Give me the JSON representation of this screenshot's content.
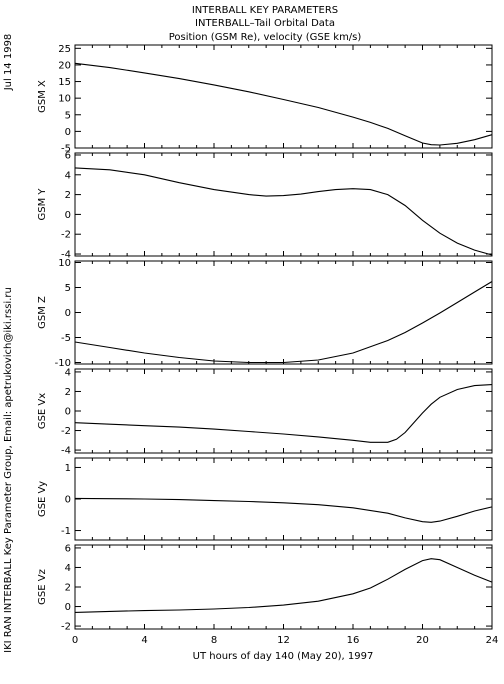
{
  "header": {
    "title_lines": [
      "INTERBALL KEY PARAMETERS",
      "INTERBALL–Tail Orbital Data",
      "Position (GSM Re), velocity (GSE km/s)"
    ]
  },
  "side_labels": {
    "date": "Jul 14 1998",
    "credit": "IKI RAN INTERBALL Key Parameter Group, Email: apetrukovich@iki.rssi.ru"
  },
  "chart_data": {
    "type": "line",
    "x_axis": {
      "label": "UT hours of day 140 (May 20), 1997",
      "range": [
        0,
        24
      ],
      "ticks": [
        0,
        4,
        8,
        12,
        16,
        20,
        24
      ]
    },
    "panels": [
      {
        "name": "GSM X",
        "ylim": [
          -5,
          26
        ],
        "yticks": [
          -5,
          0,
          5,
          10,
          15,
          20,
          25
        ],
        "x": [
          0,
          2,
          4,
          6,
          8,
          10,
          12,
          14,
          16,
          17,
          18,
          19,
          20,
          20.5,
          21,
          22,
          23,
          24
        ],
        "values": [
          20.5,
          19.2,
          17.6,
          15.9,
          14.0,
          11.9,
          9.6,
          7.2,
          4.3,
          2.7,
          0.9,
          -1.3,
          -3.5,
          -4.0,
          -4.1,
          -3.6,
          -2.5,
          -1.0
        ]
      },
      {
        "name": "GSM Y",
        "ylim": [
          -4.2,
          6.2
        ],
        "yticks": [
          -4,
          -2,
          0,
          2,
          4,
          6
        ],
        "x": [
          0,
          2,
          4,
          6,
          8,
          10,
          11,
          12,
          13,
          14,
          15,
          16,
          17,
          18,
          19,
          20,
          21,
          22,
          23,
          24
        ],
        "values": [
          4.7,
          4.5,
          4.0,
          3.2,
          2.5,
          2.0,
          1.85,
          1.9,
          2.05,
          2.3,
          2.5,
          2.6,
          2.5,
          2.0,
          0.9,
          -0.6,
          -1.9,
          -2.9,
          -3.6,
          -4.1
        ]
      },
      {
        "name": "GSM Z",
        "ylim": [
          -10.3,
          10.3
        ],
        "yticks": [
          -10,
          -5,
          0,
          5,
          10
        ],
        "x": [
          0,
          2,
          4,
          6,
          8,
          10,
          12,
          14,
          16,
          18,
          19,
          20,
          21,
          22,
          23,
          24
        ],
        "values": [
          -5.9,
          -7.0,
          -8.1,
          -9.0,
          -9.7,
          -10.0,
          -10.0,
          -9.5,
          -8.1,
          -5.6,
          -4.0,
          -2.1,
          -0.1,
          2.0,
          4.1,
          6.2
        ]
      },
      {
        "name": "GSE Vx",
        "ylim": [
          -4.3,
          4.3
        ],
        "yticks": [
          -4,
          -2,
          0,
          2,
          4
        ],
        "x": [
          0,
          2,
          4,
          6,
          8,
          10,
          12,
          14,
          16,
          17,
          18,
          18.5,
          19,
          19.5,
          20,
          20.5,
          21,
          22,
          23,
          24
        ],
        "values": [
          -1.2,
          -1.35,
          -1.5,
          -1.65,
          -1.85,
          -2.1,
          -2.35,
          -2.65,
          -3.0,
          -3.2,
          -3.2,
          -2.9,
          -2.2,
          -1.2,
          -0.2,
          0.7,
          1.4,
          2.2,
          2.6,
          2.7
        ]
      },
      {
        "name": "GSE Vy",
        "ylim": [
          -1.3,
          1.3
        ],
        "yticks": [
          -1,
          0,
          1
        ],
        "x": [
          0,
          2,
          4,
          6,
          8,
          10,
          12,
          14,
          16,
          18,
          19,
          20,
          20.5,
          21,
          22,
          23,
          24
        ],
        "values": [
          0.02,
          0.01,
          0.0,
          -0.02,
          -0.05,
          -0.08,
          -0.12,
          -0.18,
          -0.28,
          -0.45,
          -0.6,
          -0.72,
          -0.74,
          -0.7,
          -0.55,
          -0.38,
          -0.25
        ]
      },
      {
        "name": "GSE Vz",
        "ylim": [
          -2.3,
          6.3
        ],
        "yticks": [
          -2,
          0,
          2,
          4,
          6
        ],
        "x": [
          0,
          2,
          4,
          6,
          8,
          10,
          12,
          14,
          16,
          17,
          18,
          19,
          20,
          20.5,
          21,
          22,
          23,
          24
        ],
        "values": [
          -0.6,
          -0.5,
          -0.42,
          -0.35,
          -0.25,
          -0.1,
          0.15,
          0.55,
          1.3,
          1.9,
          2.8,
          3.8,
          4.7,
          4.9,
          4.8,
          4.0,
          3.2,
          2.5
        ]
      }
    ]
  }
}
